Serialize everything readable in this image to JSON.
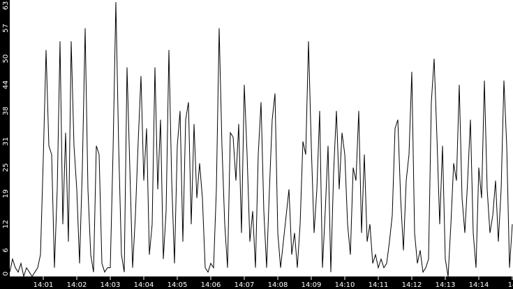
{
  "chart_data": {
    "type": "line",
    "title": "",
    "xlabel": "",
    "ylabel": "",
    "ylim": [
      0,
      63
    ],
    "xlim": [
      "14:00:00",
      "14:15:00"
    ],
    "grid": false,
    "colors": {
      "background": "#ffffff",
      "axis_bar": "#000000",
      "axis_text": "#ffffff",
      "line": "#000000"
    },
    "y_ticks": [
      "0",
      "6",
      "12",
      "19",
      "25",
      "31",
      "38",
      "44",
      "50",
      "57",
      "63"
    ],
    "x_ticks": [
      "14:01",
      "14:02",
      "14:03",
      "14:04",
      "14:05",
      "14:06",
      "14:07",
      "14:08",
      "14:09",
      "14:10",
      "14:11",
      "14:12",
      "14:13",
      "14:14",
      "14"
    ],
    "series": [
      {
        "x": [
          "14:00:00",
          "14:00:05",
          "14:00:10",
          "14:00:15",
          "14:00:20",
          "14:00:25",
          "14:00:30",
          "14:00:35",
          "14:00:40",
          "14:00:45",
          "14:00:50",
          "14:00:55",
          "14:01:00",
          "14:01:05",
          "14:01:10",
          "14:01:15",
          "14:01:20",
          "14:01:25",
          "14:01:30",
          "14:01:35",
          "14:01:40",
          "14:01:45",
          "14:01:50",
          "14:01:55",
          "14:02:00",
          "14:02:05",
          "14:02:10",
          "14:02:15",
          "14:02:20",
          "14:02:25",
          "14:02:30",
          "14:02:35",
          "14:02:40",
          "14:02:45",
          "14:02:50",
          "14:02:55",
          "14:03:00",
          "14:03:05",
          "14:03:10",
          "14:03:15",
          "14:03:20",
          "14:03:25",
          "14:03:30",
          "14:03:35",
          "14:03:40",
          "14:03:45",
          "14:03:50",
          "14:03:55",
          "14:04:00",
          "14:04:05",
          "14:04:10",
          "14:04:15",
          "14:04:20",
          "14:04:25",
          "14:04:30",
          "14:04:35",
          "14:04:40",
          "14:04:45",
          "14:04:50",
          "14:04:55",
          "14:05:00",
          "14:05:05",
          "14:05:10",
          "14:05:15",
          "14:05:20",
          "14:05:25",
          "14:05:30",
          "14:05:35",
          "14:05:40",
          "14:05:45",
          "14:05:50",
          "14:05:55",
          "14:06:00",
          "14:06:05",
          "14:06:10",
          "14:06:15",
          "14:06:20",
          "14:06:25",
          "14:06:30",
          "14:06:35",
          "14:06:40",
          "14:06:45",
          "14:06:50",
          "14:06:55",
          "14:07:00",
          "14:07:05",
          "14:07:10",
          "14:07:15",
          "14:07:20",
          "14:07:25",
          "14:07:30",
          "14:07:35",
          "14:07:40",
          "14:07:45",
          "14:07:50",
          "14:07:55",
          "14:08:00",
          "14:08:05",
          "14:08:10",
          "14:08:15",
          "14:08:20",
          "14:08:25",
          "14:08:30",
          "14:08:35",
          "14:08:40",
          "14:08:45",
          "14:08:50",
          "14:08:55",
          "14:09:00",
          "14:09:05",
          "14:09:10",
          "14:09:15",
          "14:09:20",
          "14:09:25",
          "14:09:30",
          "14:09:35",
          "14:09:40",
          "14:09:45",
          "14:09:50",
          "14:09:55",
          "14:10:00",
          "14:10:05",
          "14:10:10",
          "14:10:15",
          "14:10:20",
          "14:10:25",
          "14:10:30",
          "14:10:35",
          "14:10:40",
          "14:10:45",
          "14:10:50",
          "14:10:55",
          "14:11:00",
          "14:11:05",
          "14:11:10",
          "14:11:15",
          "14:11:20",
          "14:11:25",
          "14:11:30",
          "14:11:35",
          "14:11:40",
          "14:11:45",
          "14:11:50",
          "14:11:55",
          "14:12:00",
          "14:12:05",
          "14:12:10",
          "14:12:15",
          "14:12:20",
          "14:12:25",
          "14:12:30",
          "14:12:35",
          "14:12:40",
          "14:12:45",
          "14:12:50",
          "14:12:55",
          "14:13:00",
          "14:13:05",
          "14:13:10",
          "14:13:15",
          "14:13:20",
          "14:13:25",
          "14:13:30",
          "14:13:35",
          "14:13:40",
          "14:13:45",
          "14:13:50",
          "14:13:55",
          "14:14:00",
          "14:14:05",
          "14:14:10",
          "14:14:15",
          "14:14:20",
          "14:14:25",
          "14:14:30",
          "14:14:35",
          "14:14:40",
          "14:14:45",
          "14:14:50",
          "14:14:55",
          "14:15:00"
        ],
        "values": [
          1,
          4,
          2,
          1,
          3,
          0,
          2,
          1,
          0,
          1,
          2,
          5,
          27,
          52,
          30,
          28,
          2,
          20,
          54,
          12,
          33,
          8,
          54,
          30,
          20,
          3,
          25,
          57,
          20,
          5,
          1,
          30,
          28,
          3,
          1,
          2,
          2,
          29,
          63,
          30,
          5,
          1,
          48,
          25,
          2,
          14,
          31,
          46,
          22,
          34,
          5,
          12,
          48,
          20,
          36,
          4,
          15,
          52,
          22,
          3,
          30,
          38,
          8,
          36,
          40,
          12,
          35,
          18,
          26,
          18,
          2,
          1,
          3,
          2,
          20,
          57,
          30,
          12,
          2,
          33,
          32,
          22,
          35,
          10,
          44,
          28,
          8,
          15,
          2,
          28,
          40,
          15,
          2,
          20,
          36,
          42,
          10,
          2,
          8,
          14,
          20,
          5,
          10,
          2,
          12,
          31,
          28,
          54,
          30,
          10,
          20,
          38,
          2,
          15,
          30,
          1,
          24,
          38,
          20,
          33,
          28,
          12,
          5,
          25,
          22,
          38,
          10,
          28,
          8,
          12,
          3,
          5,
          2,
          4,
          2,
          3,
          8,
          14,
          34,
          36,
          18,
          6,
          22,
          28,
          47,
          10,
          3,
          6,
          1,
          2,
          4,
          40,
          50,
          32,
          12,
          30,
          4,
          0,
          12,
          26,
          22,
          44,
          18,
          10,
          22,
          36,
          10,
          2,
          25,
          18,
          45,
          20,
          10,
          14,
          22,
          8,
          20,
          45,
          30,
          2,
          12
        ]
      }
    ]
  }
}
